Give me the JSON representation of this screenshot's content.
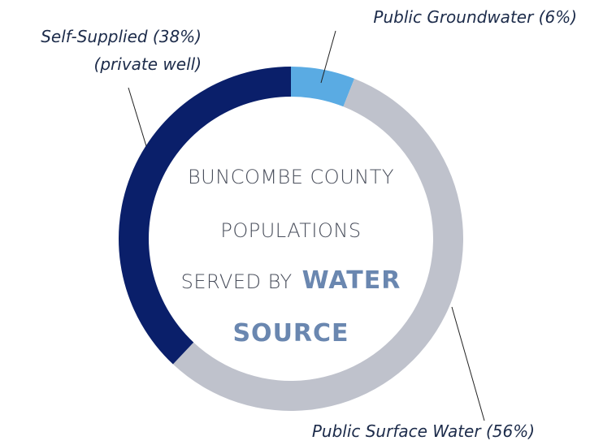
{
  "chart_data": {
    "type": "donut",
    "title_lines": [
      "BUNCOMBE COUNTY",
      "POPULATIONS",
      "SERVED BY"
    ],
    "title_emphasis": [
      "WATER",
      "SOURCE"
    ],
    "categories": [
      "Public Groundwater (6%)",
      "Public Surface Water (56%)",
      "Self-Supplied (38%)"
    ],
    "values": [
      6,
      56,
      38
    ],
    "colors": [
      "#5aabe3",
      "#bfc2cc",
      "#0a1f6a"
    ],
    "annotations": [
      "(private well)"
    ]
  }
}
